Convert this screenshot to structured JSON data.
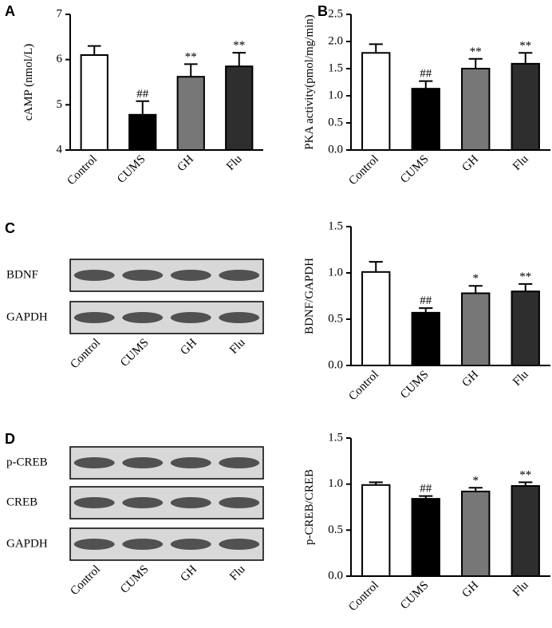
{
  "chart_data": [
    {
      "type": "bar",
      "panel": "A",
      "ylabel": "cAMP (nmol/L)",
      "categories": [
        "Control",
        "CUMS",
        "GH",
        "Flu"
      ],
      "values": [
        6.1,
        4.78,
        5.62,
        5.85
      ],
      "errors": [
        0.2,
        0.3,
        0.28,
        0.3
      ],
      "annotations": [
        null,
        "##",
        "**",
        "**"
      ],
      "colors": [
        "#ffffff",
        "#000000",
        "#777777",
        "#2e2e2e"
      ],
      "ylim": [
        4,
        7
      ],
      "yticks": [
        4,
        5,
        6,
        7
      ]
    },
    {
      "type": "bar",
      "panel": "B",
      "ylabel": "PKA activity(pmol/mg/min)",
      "categories": [
        "Control",
        "CUMS",
        "GH",
        "Flu"
      ],
      "values": [
        1.79,
        1.13,
        1.5,
        1.59
      ],
      "errors": [
        0.16,
        0.14,
        0.18,
        0.2
      ],
      "annotations": [
        null,
        "##",
        "**",
        "**"
      ],
      "colors": [
        "#ffffff",
        "#000000",
        "#777777",
        "#2e2e2e"
      ],
      "ylim": [
        0,
        2.5
      ],
      "yticks": [
        {
          "value": 0,
          "label": "0.0"
        },
        0.5,
        {
          "value": 1,
          "label": "1.0"
        },
        1.5,
        {
          "value": 2,
          "label": "2.0"
        },
        2.5
      ]
    },
    {
      "type": "bar",
      "ylabel": "BDNF/GAPDH",
      "categories": [
        "Control",
        "CUMS",
        "GH",
        "Flu"
      ],
      "values": [
        1.01,
        0.57,
        0.78,
        0.8
      ],
      "errors": [
        0.11,
        0.05,
        0.08,
        0.08
      ],
      "annotations": [
        null,
        "##",
        "*",
        "**"
      ],
      "colors": [
        "#ffffff",
        "#000000",
        "#777777",
        "#2e2e2e"
      ],
      "ylim": [
        0,
        1.5
      ],
      "yticks": [
        {
          "value": 0,
          "label": "0.0"
        },
        0.5,
        {
          "value": 1,
          "label": "1.0"
        },
        1.5
      ]
    },
    {
      "type": "bar",
      "ylabel": "p-CREB/CREB",
      "categories": [
        "Control",
        "CUMS",
        "GH",
        "Flu"
      ],
      "values": [
        0.99,
        0.84,
        0.92,
        0.98
      ],
      "errors": [
        0.03,
        0.03,
        0.04,
        0.04
      ],
      "annotations": [
        null,
        "##",
        "*",
        "**"
      ],
      "colors": [
        "#ffffff",
        "#000000",
        "#777777",
        "#2e2e2e"
      ],
      "ylim": [
        0,
        1.5
      ],
      "yticks": [
        {
          "value": 0,
          "label": "0.0"
        },
        0.5,
        {
          "value": 1,
          "label": "1.0"
        },
        1.5
      ]
    }
  ],
  "blots": [
    {
      "panel": "C",
      "rows": [
        "BDNF",
        "GAPDH"
      ],
      "lanes": [
        "Control",
        "CUMS",
        "GH",
        "Flu"
      ]
    },
    {
      "panel": "D",
      "rows": [
        "p-CREB",
        "CREB",
        "GAPDH"
      ],
      "lanes": [
        "Control",
        "CUMS",
        "GH",
        "Flu"
      ]
    }
  ]
}
